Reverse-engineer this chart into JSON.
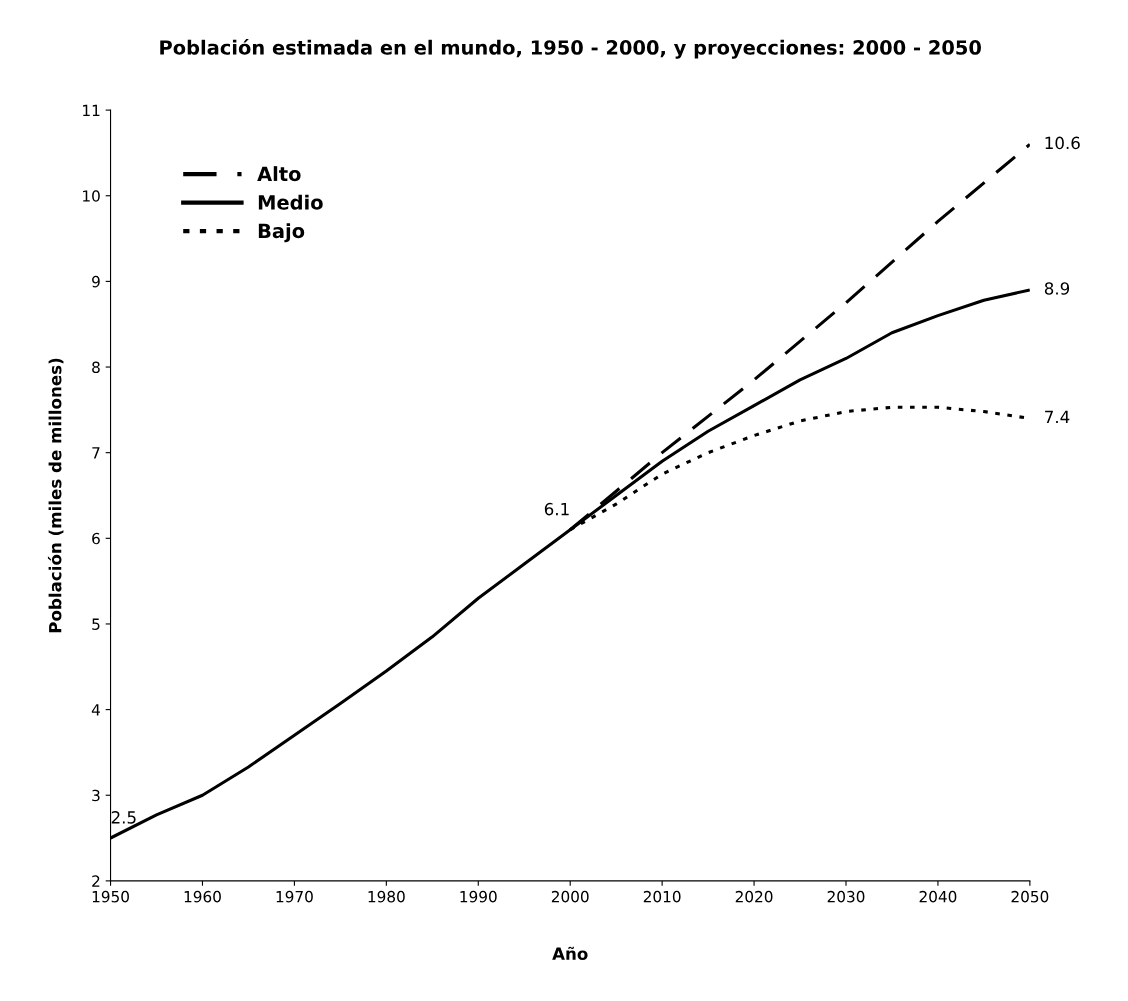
{
  "chart_data": {
    "type": "line",
    "title": "Población estimada en el mundo, 1950 - 2000, y proyecciones: 2000 - 2050",
    "xlabel": "Año",
    "ylabel": "Población (miles de millones)",
    "series": [
      {
        "name": "Alto",
        "color": "#000000",
        "line_style": "dashed",
        "x": [
          2000,
          2005,
          2010,
          2020,
          2030,
          2040,
          2050
        ],
        "values": [
          6.1,
          6.55,
          7.0,
          7.85,
          8.75,
          9.7,
          10.6
        ]
      },
      {
        "name": "Medio",
        "color": "#000000",
        "line_style": "solid",
        "x": [
          1950,
          1955,
          1960,
          1965,
          1970,
          1975,
          1980,
          1985,
          1990,
          1995,
          2000,
          2005,
          2010,
          2015,
          2020,
          2025,
          2030,
          2035,
          2040,
          2045,
          2050
        ],
        "values": [
          2.5,
          2.77,
          3.0,
          3.33,
          3.7,
          4.07,
          4.45,
          4.85,
          5.3,
          5.7,
          6.1,
          6.5,
          6.9,
          7.25,
          7.55,
          7.85,
          8.1,
          8.4,
          8.6,
          8.78,
          8.9
        ]
      },
      {
        "name": "Bajo",
        "color": "#000000",
        "line_style": "dotted",
        "x": [
          2000,
          2005,
          2010,
          2015,
          2020,
          2025,
          2030,
          2035,
          2040,
          2045,
          2050
        ],
        "values": [
          6.1,
          6.4,
          6.75,
          7.0,
          7.2,
          7.37,
          7.48,
          7.53,
          7.53,
          7.48,
          7.4
        ]
      }
    ],
    "annotations": [
      {
        "text": "2.5",
        "x": 1950,
        "y": 2.5
      },
      {
        "text": "6.1",
        "x": 2000,
        "y": 6.1
      },
      {
        "text": "10.6",
        "x": 2050,
        "y": 10.6
      },
      {
        "text": "8.9",
        "x": 2050,
        "y": 8.9
      },
      {
        "text": "7.4",
        "x": 2050,
        "y": 7.4
      }
    ],
    "xlim": [
      1950,
      2050
    ],
    "xticks": [
      1950,
      1960,
      1970,
      1980,
      1990,
      2000,
      2010,
      2020,
      2030,
      2040,
      2050
    ],
    "ylim": [
      2,
      11
    ],
    "yticks": [
      2,
      3,
      4,
      5,
      6,
      7,
      8,
      9,
      10,
      11
    ],
    "grid": false,
    "legend": "top left",
    "marker": "none"
  }
}
